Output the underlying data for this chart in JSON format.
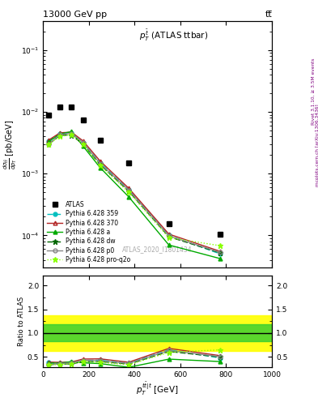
{
  "title_left": "13000 GeV pp",
  "title_right": "tt̅",
  "panel_title": "$p_T^{\\bar{t}}$ (ATLAS ttbar)",
  "watermark": "ATLAS_2020_I1801434",
  "right_label_top": "Rivet 3.1.10, ≥ 3.5M events",
  "right_label_bot": "mcplots.cern.ch [arXiv:1306.3436]",
  "ylabel_main": "$\\frac{d\\sigma_{t\\bar{t}}}{dp_T}$ [pb/GeV]",
  "ylabel_ratio": "Ratio to ATLAS",
  "xlabel": "$p^{t\\bar{t}|t}_T$ [GeV]",
  "xlim": [
    0,
    1000
  ],
  "ylim_main_lo": 3e-05,
  "ylim_main_hi": 0.3,
  "ylim_ratio_lo": 0.28,
  "ylim_ratio_hi": 2.2,
  "atlas_x": [
    25,
    75,
    125,
    175,
    250,
    375,
    550,
    775
  ],
  "atlas_y": [
    0.009,
    0.012,
    0.012,
    0.0075,
    0.0035,
    0.0015,
    0.000155,
    0.000105
  ],
  "p359_x": [
    25,
    75,
    125,
    175,
    250,
    375,
    550,
    775
  ],
  "p359_y": [
    0.0034,
    0.0045,
    0.0046,
    0.0032,
    0.0015,
    0.00055,
    0.0001,
    5e-05
  ],
  "p370_x": [
    25,
    75,
    125,
    175,
    250,
    375,
    550,
    775
  ],
  "p370_y": [
    0.0035,
    0.0046,
    0.0047,
    0.0034,
    0.0016,
    0.00058,
    0.000105,
    5.5e-05
  ],
  "pa_x": [
    25,
    75,
    125,
    175,
    250,
    375,
    550,
    775
  ],
  "pa_y": [
    0.0033,
    0.0044,
    0.0048,
    0.0028,
    0.00125,
    0.00042,
    7e-05,
    4.2e-05
  ],
  "pdw_x": [
    25,
    75,
    125,
    175,
    250,
    375,
    550,
    775
  ],
  "pdw_y": [
    0.003,
    0.0042,
    0.0042,
    0.003,
    0.0014,
    0.00052,
    9.5e-05,
    5.2e-05
  ],
  "pp0_x": [
    25,
    75,
    125,
    175,
    250,
    375,
    550,
    775
  ],
  "pp0_y": [
    0.003,
    0.0043,
    0.0045,
    0.0032,
    0.00145,
    0.00054,
    9.8e-05,
    5.3e-05
  ],
  "pproq2o_x": [
    25,
    75,
    125,
    175,
    250,
    375,
    550,
    775
  ],
  "pproq2o_y": [
    0.003,
    0.004,
    0.0043,
    0.003,
    0.00135,
    0.0005,
    9.2e-05,
    6.8e-05
  ],
  "band_yellow_lo": 0.62,
  "band_yellow_hi": 1.38,
  "band_green_lo": 0.82,
  "band_green_hi": 1.18,
  "ratio_ref": 1.0,
  "color_p359": "#00bfbf",
  "color_p370": "#b22222",
  "color_pa": "#00aa00",
  "color_pdw": "#006600",
  "color_pp0": "#888888",
  "color_pproq2o": "#88ff00"
}
